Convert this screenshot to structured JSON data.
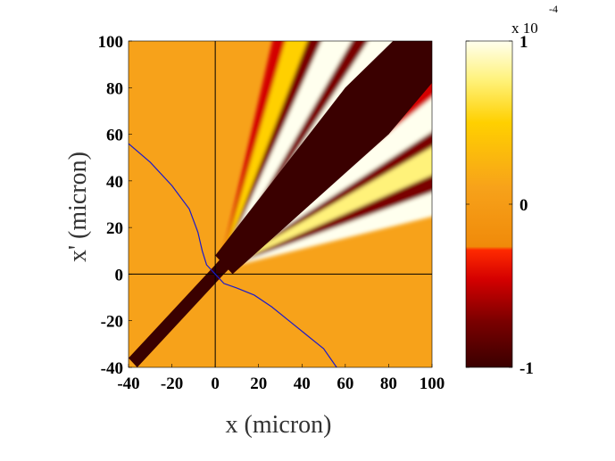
{
  "chart_data": {
    "type": "heatmap",
    "xlabel": "x (micron)",
    "ylabel": "x' (micron)",
    "xlim": [
      -40,
      100
    ],
    "ylim": [
      -40,
      100
    ],
    "xticks": [
      "-40",
      "-20",
      "0",
      "20",
      "40",
      "60",
      "80",
      "100"
    ],
    "yticks": [
      "100",
      "80",
      "60",
      "40",
      "20",
      "0",
      "-20",
      "-40"
    ],
    "colorbar": {
      "range": [
        -1,
        1
      ],
      "exponent_label": "x 10",
      "exponent_power": "-4",
      "ticks": [
        "1",
        "0",
        "-1"
      ],
      "colormap": "hot",
      "colors": [
        "#3a0000",
        "#7a0000",
        "#d40000",
        "#ff2a00",
        "#f08a0a",
        "#f7a21a",
        "#ffd000",
        "#fff27a",
        "#ffffee"
      ]
    },
    "field": {
      "description_values": "signed field in units of 1e-4, dark band along x' = x diagonal",
      "background_value": 0.0,
      "diagonal_band_value": -1.0,
      "fringe_values": [
        -0.8,
        1.0
      ]
    },
    "overlay_curve": {
      "color": "#1a1acc",
      "points": [
        [
          -40,
          56
        ],
        [
          -30,
          48
        ],
        [
          -20,
          38
        ],
        [
          -12,
          28
        ],
        [
          -8,
          18
        ],
        [
          -6,
          10
        ],
        [
          -4,
          4
        ],
        [
          0,
          0
        ],
        [
          4,
          -4
        ],
        [
          10,
          -6
        ],
        [
          18,
          -9
        ],
        [
          26,
          -14
        ],
        [
          34,
          -20
        ],
        [
          42,
          -26
        ],
        [
          50,
          -32
        ],
        [
          56,
          -40
        ]
      ]
    },
    "crosshair": {
      "x": 0,
      "y": 0
    }
  }
}
